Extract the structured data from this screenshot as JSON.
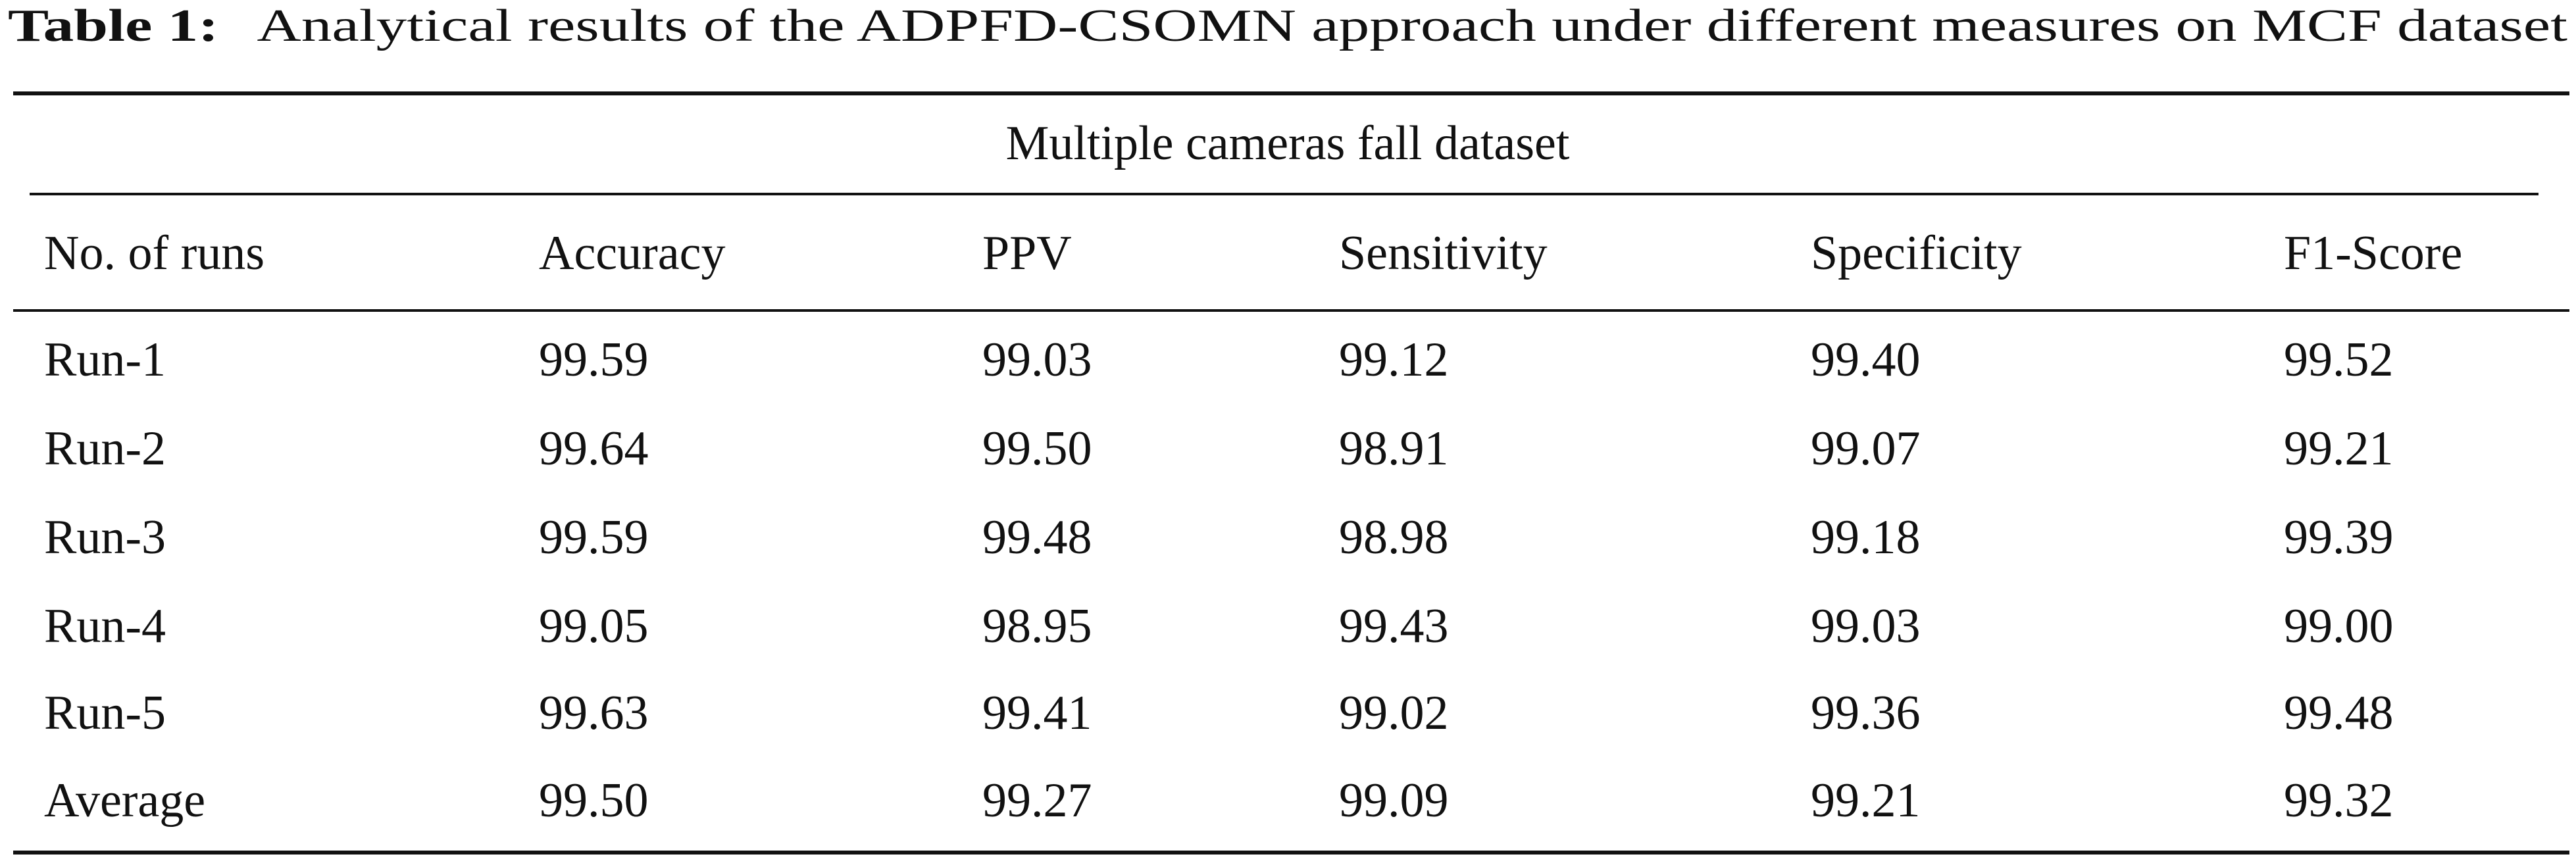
{
  "caption": {
    "label": "Table 1:",
    "text": "Analytical results of the ADPFD-CSOMN approach under different measures on MCF dataset"
  },
  "table": {
    "group_header": "Multiple cameras fall dataset",
    "columns": [
      "No. of runs",
      "Accuracy",
      "PPV",
      "Sensitivity",
      "Specificity",
      "F1-Score"
    ],
    "rows": [
      [
        "Run-1",
        "99.59",
        "99.03",
        "99.12",
        "99.40",
        "99.52"
      ],
      [
        "Run-2",
        "99.64",
        "99.50",
        "98.91",
        "99.07",
        "99.21"
      ],
      [
        "Run-3",
        "99.59",
        "99.48",
        "98.98",
        "99.18",
        "99.39"
      ],
      [
        "Run-4",
        "99.05",
        "98.95",
        "99.43",
        "99.03",
        "99.00"
      ],
      [
        "Run-5",
        "99.63",
        "99.41",
        "99.02",
        "99.36",
        "99.48"
      ],
      [
        "Average",
        "99.50",
        "99.27",
        "99.09",
        "99.21",
        "99.32"
      ]
    ]
  }
}
